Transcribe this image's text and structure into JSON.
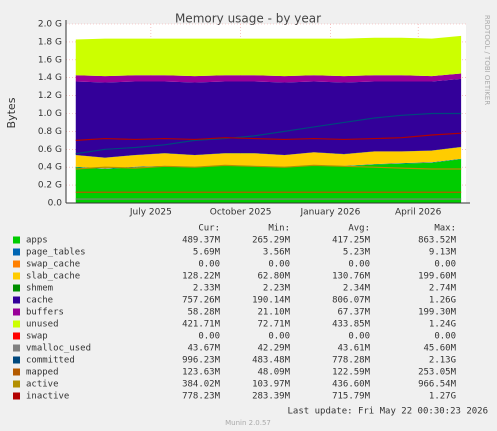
{
  "chart_data": {
    "type": "area",
    "title": "Memory usage - by year",
    "y_label": "Bytes",
    "side_label": "RRDTOOL / TOBI OETIKER",
    "x": [
      "2025-04-15",
      "2025-05-15",
      "2025-06-15",
      "2025-07-15",
      "2025-08-15",
      "2025-09-15",
      "2025-10-15",
      "2025-11-15",
      "2025-12-15",
      "2026-01-15",
      "2026-02-15",
      "2026-03-15",
      "2026-04-15",
      "2026-05-15"
    ],
    "xlim": [
      "2025-04-05",
      "2026-05-20"
    ],
    "xticks": [
      {
        "value": "2025-07-01",
        "label": "July 2025"
      },
      {
        "value": "2025-10-01",
        "label": "October 2025"
      },
      {
        "value": "2026-01-01",
        "label": "January 2026"
      },
      {
        "value": "2026-04-01",
        "label": "April 2026"
      }
    ],
    "ylim": [
      0,
      2.0
    ],
    "yticks": [
      {
        "value": 0,
        "label": "0.0"
      },
      {
        "value": 0.2,
        "label": "0.2 G"
      },
      {
        "value": 0.4,
        "label": "0.4 G"
      },
      {
        "value": 0.6,
        "label": "0.6 G"
      },
      {
        "value": 0.8,
        "label": "0.8 G"
      },
      {
        "value": 1.0,
        "label": "1.0 G"
      },
      {
        "value": 1.2,
        "label": "1.2 G"
      },
      {
        "value": 1.4,
        "label": "1.4 G"
      },
      {
        "value": 1.6,
        "label": "1.6 G"
      },
      {
        "value": 1.8,
        "label": "1.8 G"
      },
      {
        "value": 2.0,
        "label": "2.0 G"
      }
    ],
    "grid": true,
    "stat_columns": [
      "Cur:",
      "Min:",
      "Avg:",
      "Max:"
    ],
    "series": [
      {
        "name": "apps",
        "color": "#00cc00",
        "stack": true,
        "values": [
          0.4,
          0.38,
          0.4,
          0.41,
          0.4,
          0.42,
          0.41,
          0.4,
          0.42,
          0.41,
          0.43,
          0.44,
          0.45,
          0.49
        ],
        "stats": [
          "489.37M",
          "265.29M",
          "417.25M",
          "863.52M"
        ]
      },
      {
        "name": "page_tables",
        "color": "#0066b3",
        "stack": true,
        "values": [
          0.005,
          0.005,
          0.005,
          0.005,
          0.005,
          0.005,
          0.005,
          0.005,
          0.005,
          0.005,
          0.005,
          0.005,
          0.005,
          0.005
        ],
        "stats": [
          "5.69M",
          "3.56M",
          "5.23M",
          "9.13M"
        ]
      },
      {
        "name": "swap_cache",
        "color": "#ff8000",
        "stack": true,
        "values": [
          0,
          0,
          0,
          0,
          0,
          0,
          0,
          0,
          0,
          0,
          0,
          0,
          0,
          0
        ],
        "stats": [
          "0.00",
          "0.00",
          "0.00",
          "0.00"
        ]
      },
      {
        "name": "slab_cache",
        "color": "#ffcc00",
        "stack": true,
        "values": [
          0.13,
          0.12,
          0.13,
          0.14,
          0.13,
          0.13,
          0.14,
          0.13,
          0.14,
          0.13,
          0.14,
          0.13,
          0.13,
          0.13
        ],
        "stats": [
          "128.22M",
          "62.80M",
          "130.76M",
          "199.60M"
        ]
      },
      {
        "name": "shmem",
        "color": "#008f00",
        "stack": true,
        "values": [
          0.002,
          0.002,
          0.002,
          0.002,
          0.002,
          0.002,
          0.002,
          0.002,
          0.002,
          0.002,
          0.002,
          0.002,
          0.002,
          0.002
        ],
        "stats": [
          "2.33M",
          "2.23M",
          "2.34M",
          "2.74M"
        ]
      },
      {
        "name": "cache",
        "color": "#330099",
        "stack": true,
        "values": [
          0.82,
          0.84,
          0.82,
          0.8,
          0.81,
          0.8,
          0.8,
          0.81,
          0.79,
          0.8,
          0.78,
          0.78,
          0.77,
          0.76
        ],
        "stats": [
          "757.26M",
          "190.14M",
          "806.07M",
          "1.26G"
        ]
      },
      {
        "name": "buffers",
        "color": "#990099",
        "stack": true,
        "values": [
          0.07,
          0.07,
          0.07,
          0.07,
          0.07,
          0.07,
          0.07,
          0.07,
          0.07,
          0.07,
          0.07,
          0.07,
          0.06,
          0.06
        ],
        "stats": [
          "58.28M",
          "21.10M",
          "67.37M",
          "199.30M"
        ]
      },
      {
        "name": "unused",
        "color": "#ccff00",
        "stack": true,
        "values": [
          0.4,
          0.42,
          0.41,
          0.41,
          0.42,
          0.41,
          0.41,
          0.42,
          0.41,
          0.42,
          0.42,
          0.42,
          0.42,
          0.42
        ],
        "stats": [
          "421.71M",
          "72.71M",
          "433.85M",
          "1.24G"
        ]
      },
      {
        "name": "swap",
        "color": "#ff0000",
        "stack": true,
        "values": [
          0,
          0,
          0,
          0,
          0,
          0,
          0,
          0,
          0,
          0,
          0,
          0,
          0,
          0
        ],
        "stats": [
          "0.00",
          "0.00",
          "0.00",
          "0.00"
        ]
      },
      {
        "name": "vmalloc_used",
        "color": "#808080",
        "stack": false,
        "values": [
          0.044,
          0.044,
          0.044,
          0.044,
          0.044,
          0.044,
          0.044,
          0.044,
          0.044,
          0.044,
          0.044,
          0.044,
          0.044,
          0.044
        ],
        "stats": [
          "43.67M",
          "42.29M",
          "43.61M",
          "45.60M"
        ]
      },
      {
        "name": "committed",
        "color": "#00487d",
        "stack": false,
        "values": [
          0.55,
          0.6,
          0.62,
          0.65,
          0.7,
          0.72,
          0.75,
          0.8,
          0.85,
          0.9,
          0.95,
          0.98,
          1.0,
          1.0
        ],
        "stats": [
          "996.23M",
          "483.48M",
          "778.28M",
          "2.13G"
        ]
      },
      {
        "name": "mapped",
        "color": "#b35a00",
        "stack": false,
        "values": [
          0.12,
          0.12,
          0.12,
          0.12,
          0.12,
          0.12,
          0.12,
          0.12,
          0.12,
          0.12,
          0.12,
          0.12,
          0.12,
          0.12
        ],
        "stats": [
          "123.63M",
          "48.09M",
          "122.59M",
          "253.05M"
        ]
      },
      {
        "name": "active",
        "color": "#b38f00",
        "stack": false,
        "values": [
          0.38,
          0.4,
          0.39,
          0.41,
          0.4,
          0.42,
          0.41,
          0.4,
          0.42,
          0.41,
          0.4,
          0.39,
          0.38,
          0.38
        ],
        "stats": [
          "384.02M",
          "103.97M",
          "436.60M",
          "966.54M"
        ]
      },
      {
        "name": "inactive",
        "color": "#b30000",
        "stack": false,
        "values": [
          0.7,
          0.72,
          0.71,
          0.72,
          0.71,
          0.73,
          0.72,
          0.71,
          0.72,
          0.71,
          0.72,
          0.73,
          0.76,
          0.78
        ],
        "stats": [
          "778.23M",
          "283.39M",
          "715.79M",
          "1.27G"
        ]
      }
    ],
    "last_update": "Last update: Fri May 22 00:30:23 2026",
    "footer": "Munin 2.0.57"
  }
}
